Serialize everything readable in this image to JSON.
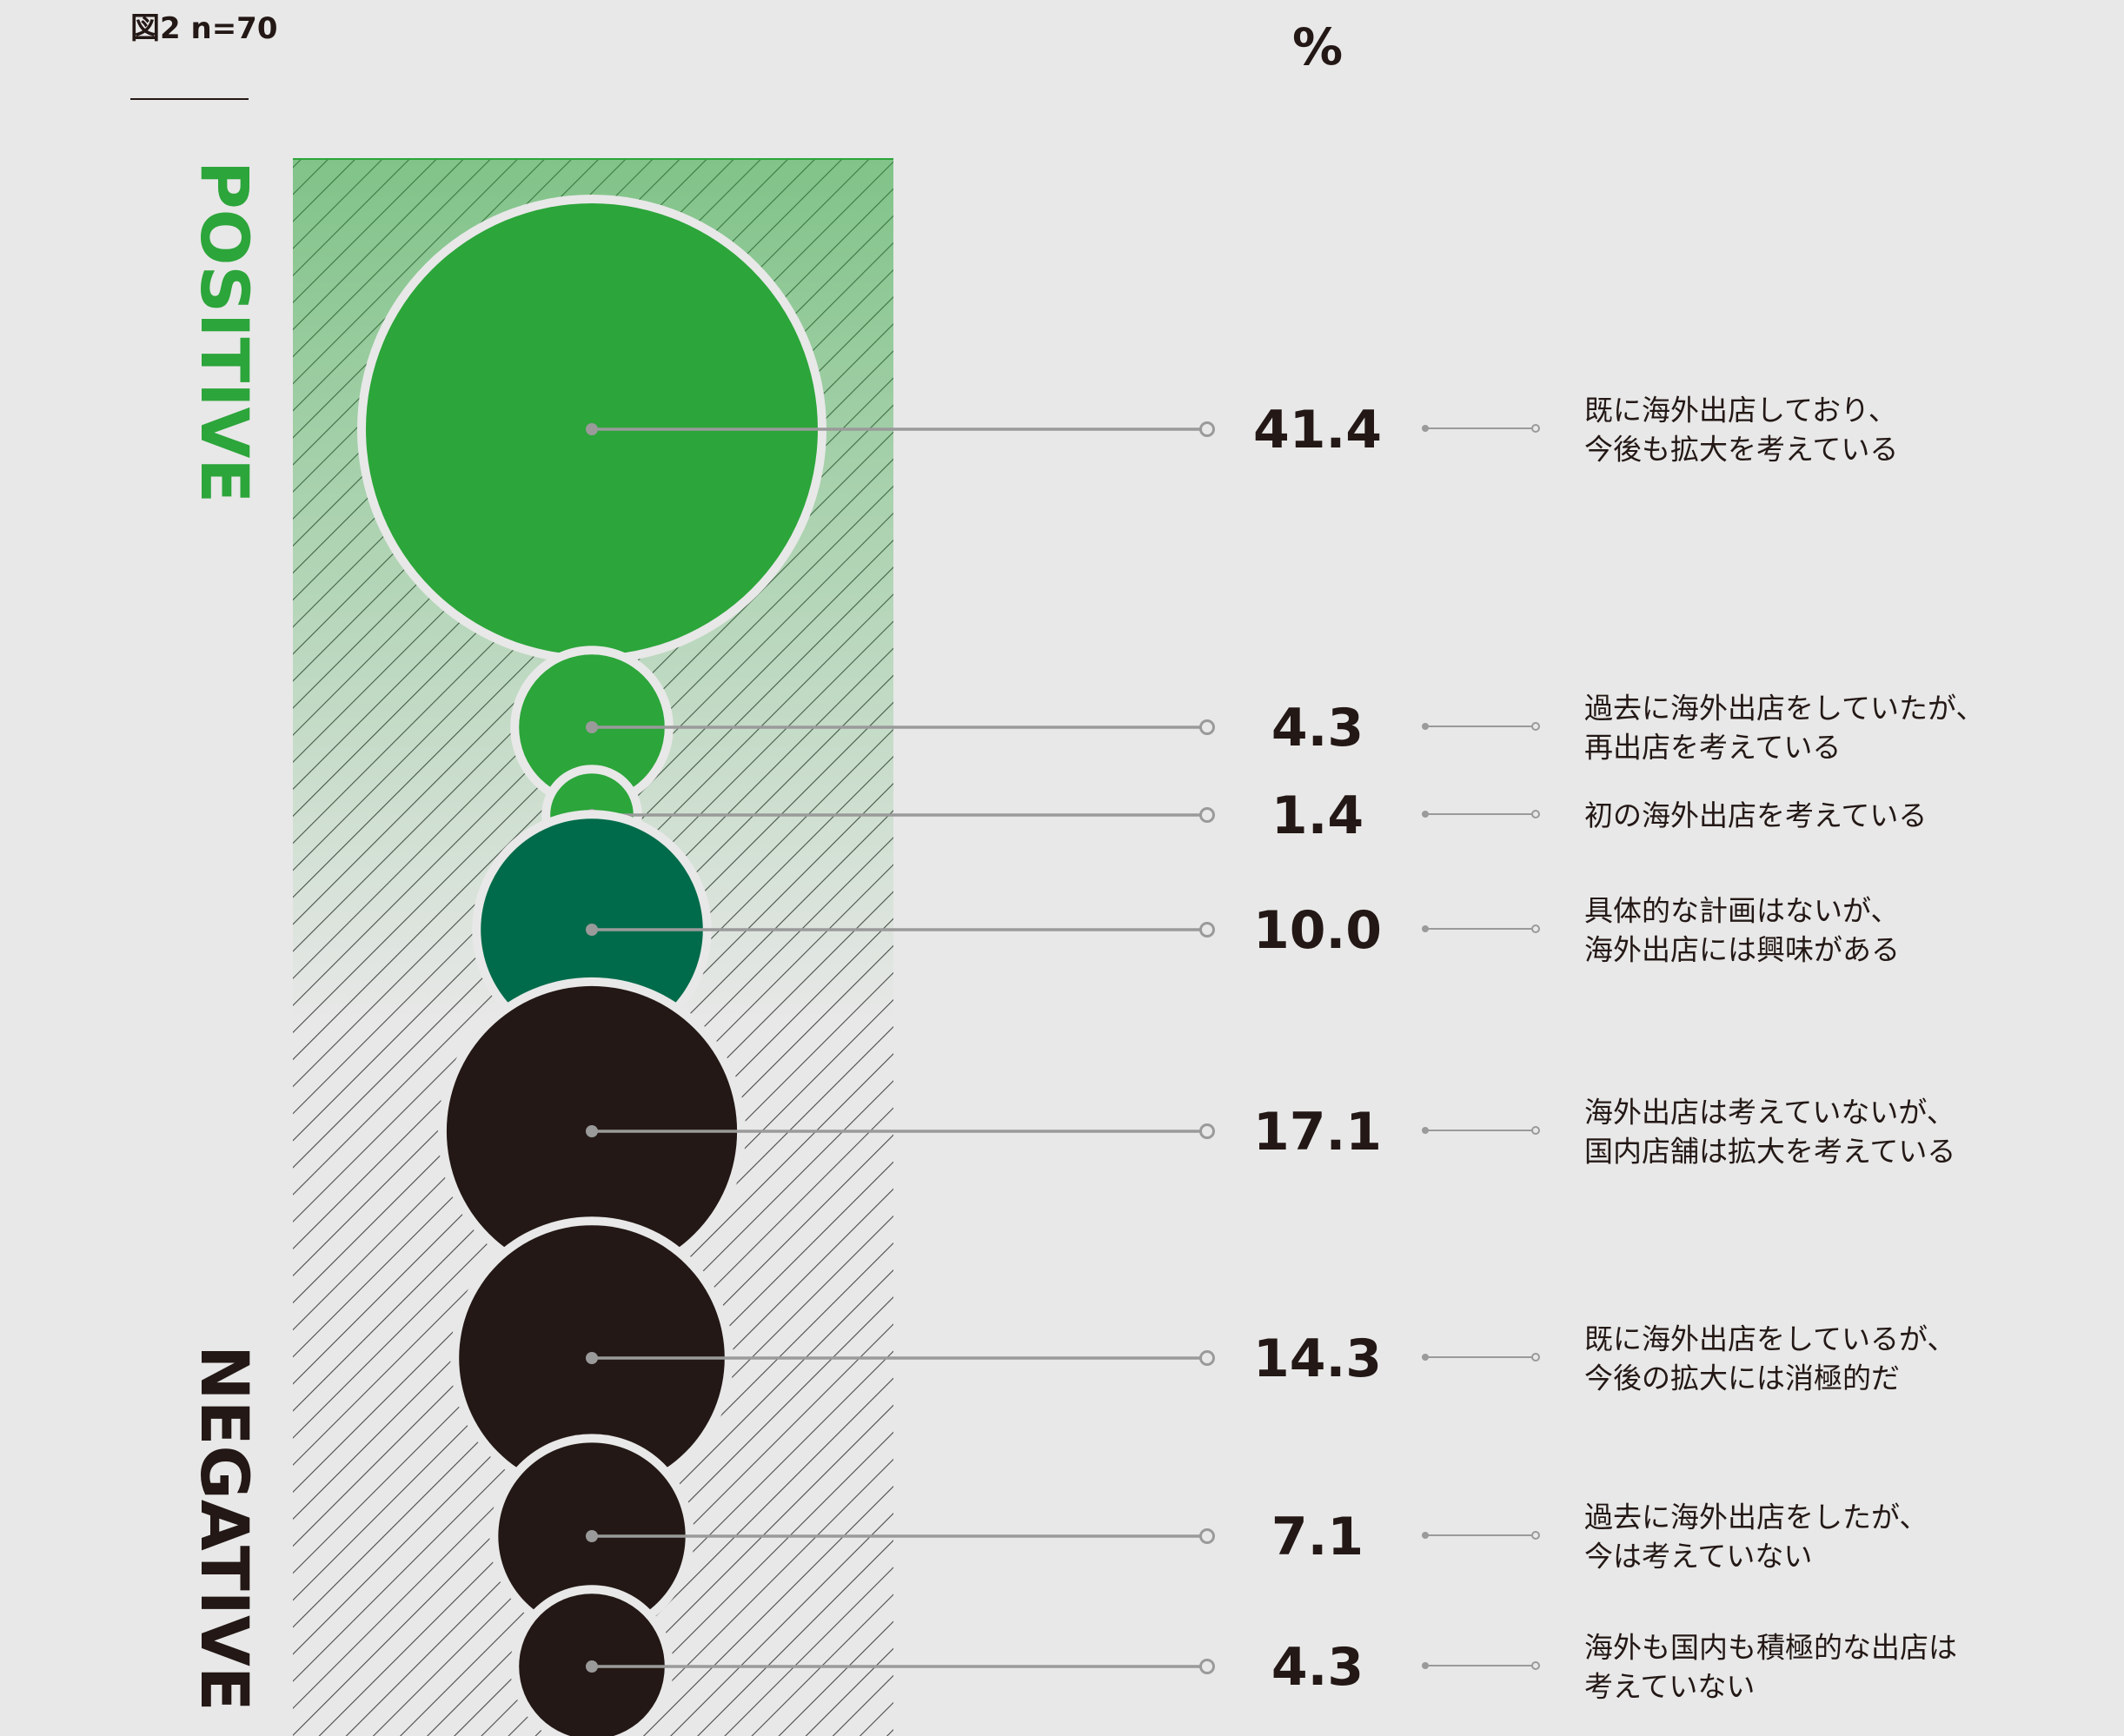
{
  "figure_label": "図2 n=70",
  "chart_data": {
    "type": "bubble",
    "unit": "%",
    "groups": {
      "positive": "POSITIVE",
      "negative": "NEGATIVE"
    },
    "items": [
      {
        "value": 41.4,
        "label": "41.4",
        "lines": [
          "既に海外出店しており、",
          "今後も拡大を考えている"
        ],
        "group": "positive",
        "color": "#2ca53a"
      },
      {
        "value": 4.3,
        "label": "4.3",
        "lines": [
          "過去に海外出店をしていたが、",
          "再出店を考えている"
        ],
        "group": "positive",
        "color": "#2ca53a"
      },
      {
        "value": 1.4,
        "label": "1.4",
        "lines": [
          "初の海外出店を考えている"
        ],
        "group": "positive",
        "color": "#2ca53a"
      },
      {
        "value": 10.0,
        "label": "10.0",
        "lines": [
          "具体的な計画はないが、",
          "海外出店には興味がある"
        ],
        "group": "positive",
        "color": "#006b4a"
      },
      {
        "value": 17.1,
        "label": "17.1",
        "lines": [
          "海外出店は考えていないが、",
          "国内店舗は拡大を考えている"
        ],
        "group": "negative",
        "color": "#231815"
      },
      {
        "value": 14.3,
        "label": "14.3",
        "lines": [
          "既に海外出店をしているが、",
          "今後の拡大には消極的だ"
        ],
        "group": "negative",
        "color": "#231815"
      },
      {
        "value": 7.1,
        "label": "7.1",
        "lines": [
          "過去に海外出店をしたが、",
          "今は考えていない"
        ],
        "group": "negative",
        "color": "#231815"
      },
      {
        "value": 4.3,
        "label": "4.3",
        "lines": [
          "海外も国内も積極的な出店は",
          "考えていない"
        ],
        "group": "negative",
        "color": "#231815"
      }
    ],
    "colors": {
      "positive": "#2ca53a",
      "interest": "#006b4a",
      "negative": "#231815",
      "connector": "#9a9a9a",
      "background": "#e8e8e8"
    }
  }
}
